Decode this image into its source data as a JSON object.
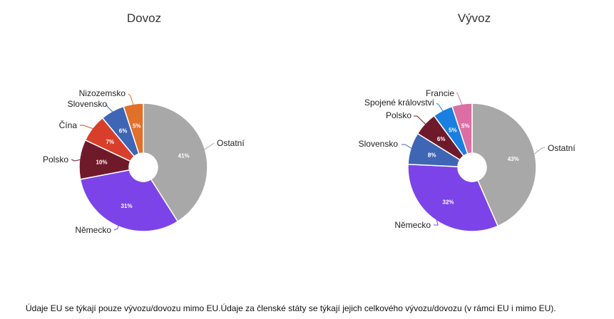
{
  "chart_data": [
    {
      "type": "pie",
      "title": "Dovoz",
      "slices": [
        {
          "label": "Ostatní",
          "value": 41,
          "text": "41%",
          "color": "#a8a8a8"
        },
        {
          "label": "Německo",
          "value": 31,
          "text": "31%",
          "color": "#7c44e8"
        },
        {
          "label": "Polsko",
          "value": 10,
          "text": "10%",
          "color": "#6f1a2a"
        },
        {
          "label": "Čína",
          "value": 7,
          "text": "7%",
          "color": "#d83f2b"
        },
        {
          "label": "Slovensko",
          "value": 6,
          "text": "6%",
          "color": "#3e66b5"
        },
        {
          "label": "Nizozemsko",
          "value": 5,
          "text": "5%",
          "color": "#e0702a"
        }
      ]
    },
    {
      "type": "pie",
      "title": "Vývoz",
      "slices": [
        {
          "label": "Ostatní",
          "value": 43,
          "text": "43%",
          "color": "#a8a8a8"
        },
        {
          "label": "Německo",
          "value": 32,
          "text": "32%",
          "color": "#7c44e8"
        },
        {
          "label": "Slovensko",
          "value": 8,
          "text": "8%",
          "color": "#3e66b5"
        },
        {
          "label": "Polsko",
          "value": 6,
          "text": "6%",
          "color": "#6f1a2a"
        },
        {
          "label": "Spojené království",
          "value": 5,
          "text": "5%",
          "color": "#1a7fe0"
        },
        {
          "label": "Francie",
          "value": 5,
          "text": "5%",
          "color": "#dc6ea4"
        }
      ]
    }
  ],
  "footnote": "Údaje EU se týkají pouze vývozu/dovozu mimo EU.Údaje za členské státy se týkají jejich celkového vývozu/dovozu (v rámci EU i mimo EU)."
}
